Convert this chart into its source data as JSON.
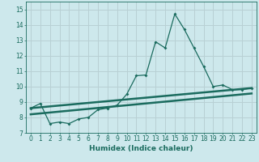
{
  "xlabel": "Humidex (Indice chaleur)",
  "xlim": [
    -0.5,
    23.5
  ],
  "ylim": [
    7,
    15.5
  ],
  "yticks": [
    7,
    8,
    9,
    10,
    11,
    12,
    13,
    14,
    15
  ],
  "xticks": [
    0,
    1,
    2,
    3,
    4,
    5,
    6,
    7,
    8,
    9,
    10,
    11,
    12,
    13,
    14,
    15,
    16,
    17,
    18,
    19,
    20,
    21,
    22,
    23
  ],
  "bg_color": "#cde8ec",
  "line_color": "#1a6b5e",
  "grid_color": "#b8d0d4",
  "series1_x": [
    0,
    1,
    2,
    3,
    4,
    5,
    6,
    7,
    8,
    9,
    10,
    11,
    12,
    13,
    14,
    15,
    16,
    17,
    18,
    19,
    20,
    21,
    22,
    23
  ],
  "series1_y": [
    8.6,
    8.9,
    7.6,
    7.7,
    7.6,
    7.9,
    8.0,
    8.5,
    8.6,
    8.8,
    9.5,
    10.7,
    10.75,
    12.9,
    12.5,
    14.7,
    13.7,
    12.5,
    11.3,
    10.0,
    10.1,
    9.8,
    9.8,
    9.9
  ],
  "series2_x": [
    0,
    23
  ],
  "series2_y": [
    8.6,
    9.9
  ],
  "series3_x": [
    0,
    23
  ],
  "series3_y": [
    8.2,
    9.55
  ],
  "tick_fontsize": 5.5,
  "xlabel_fontsize": 6.5
}
